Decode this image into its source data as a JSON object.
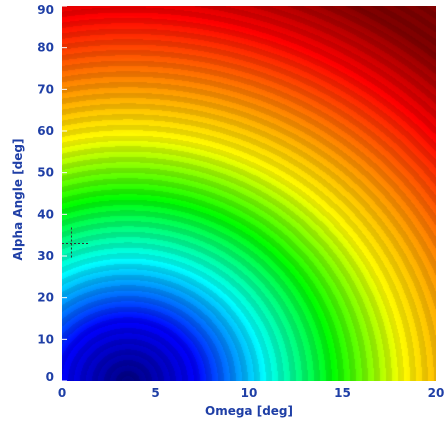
{
  "chart_data": {
    "type": "heatmap",
    "title": "",
    "xlabel": "Omega [deg]",
    "ylabel": "Alpha Angle [deg]",
    "xlim": [
      0,
      20
    ],
    "ylim": [
      0,
      90
    ],
    "x_ticks": [
      0,
      5,
      10,
      15,
      20
    ],
    "y_ticks": [
      0,
      10,
      20,
      30,
      40,
      50,
      60,
      70,
      80,
      90
    ],
    "colormap": [
      "#000080",
      "#0000ff",
      "#00ffff",
      "#00ff00",
      "#ffff00",
      "#ff8000",
      "#ff0000",
      "#800000"
    ],
    "field": {
      "description": "Color increases radially from a minimum near Omega 3–4 deg, Alpha 0 deg toward the top-right; contour bands visible.",
      "minimum": {
        "x": 3.5,
        "y": 0
      },
      "value_scale": {
        "x_weight": 1.0,
        "y_weight": 0.25
      }
    },
    "crosshair": {
      "x": 0.4,
      "y": 33
    },
    "grid": false,
    "legend": "none"
  },
  "axis_text_color": "#1f3fa6",
  "tick_color": "#1f3fa6"
}
